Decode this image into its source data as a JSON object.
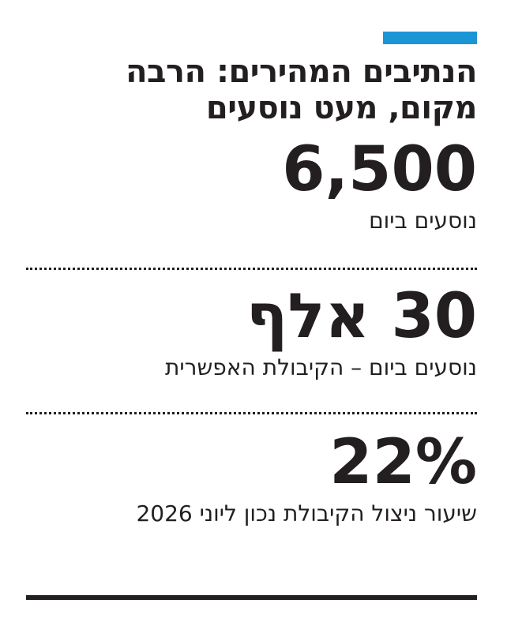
{
  "header": {
    "title_lines": [
      "הנתיבים המהירים: הרבה",
      "מקום, מעט נוסעים"
    ]
  },
  "stats": [
    {
      "value": "6,500",
      "caption": "נוסעים ביום"
    },
    {
      "value": "30 אלף",
      "caption": "נוסעים ביום – הקיבולת האפשרית"
    },
    {
      "value": "22%",
      "caption": "שיעור ניצול הקיבולת נכון ליוני 2026"
    }
  ]
}
